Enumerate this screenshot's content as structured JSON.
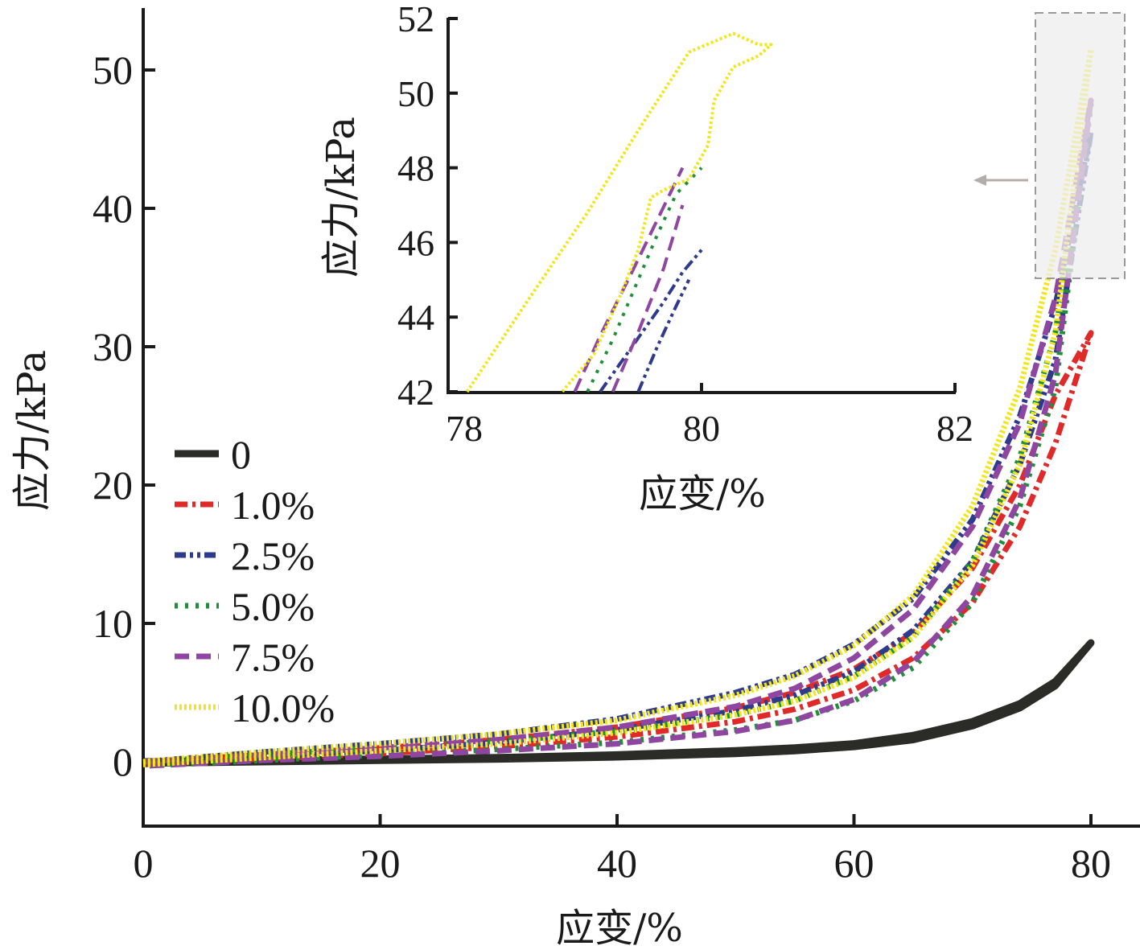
{
  "chart_data": [
    {
      "type": "line",
      "xlabel": "应变/%",
      "ylabel": "应力/kPa",
      "xlim": [
        0,
        84
      ],
      "ylim": [
        -5,
        55
      ],
      "xticks": [
        "0",
        "20",
        "40",
        "60",
        "80"
      ],
      "yticks": [
        "0",
        "10",
        "20",
        "30",
        "40",
        "50"
      ],
      "legend_position": "middle-left",
      "series": [
        {
          "name": "0",
          "color": "#2b2b28",
          "dash": "solid",
          "width": 9,
          "x": [
            0,
            10,
            20,
            30,
            40,
            50,
            55,
            60,
            65,
            70,
            74,
            77,
            80
          ],
          "y": [
            0,
            0.1,
            0.2,
            0.3,
            0.5,
            0.8,
            1.0,
            1.3,
            1.9,
            2.9,
            4.2,
            5.8,
            8.6
          ],
          "unload_y": [
            -0.1,
            0.0,
            0.1,
            0.2,
            0.35,
            0.6,
            0.8,
            1.1,
            1.6,
            2.6,
            3.9,
            5.5,
            8.6
          ]
        },
        {
          "name": "1.0%",
          "color": "#e02a2a",
          "dash": "dashdot",
          "width": 7,
          "x": [
            0,
            10,
            20,
            30,
            40,
            50,
            55,
            60,
            65,
            70,
            74,
            77,
            80
          ],
          "y": [
            0,
            0.5,
            1.0,
            1.6,
            2.5,
            3.9,
            5.0,
            6.7,
            9.3,
            14.0,
            20.0,
            26.5,
            31.0
          ],
          "unload_y": [
            -0.2,
            0.2,
            0.6,
            1.1,
            1.8,
            2.9,
            3.8,
            5.2,
            7.5,
            11.5,
            17.0,
            23.0,
            31.0
          ]
        },
        {
          "name": "2.5%",
          "color": "#2e3a8c",
          "dash": "dashdotdot",
          "width": 7,
          "x": [
            0,
            10,
            20,
            30,
            40,
            50,
            55,
            60,
            65,
            70,
            74,
            77,
            80
          ],
          "y": [
            0,
            0.7,
            1.3,
            2.0,
            3.1,
            5.0,
            6.3,
            8.5,
            11.8,
            17.5,
            25.0,
            33.0,
            45.5
          ],
          "unload_y": [
            -0.2,
            0.3,
            0.8,
            1.4,
            2.3,
            3.7,
            4.8,
            6.5,
            9.5,
            14.5,
            21.5,
            29.0,
            45.5
          ]
        },
        {
          "name": "5.0%",
          "color": "#1f8f3a",
          "dash": "dotted",
          "width": 7,
          "x": [
            0,
            10,
            20,
            30,
            40,
            50,
            55,
            60,
            65,
            70,
            74,
            77,
            80
          ],
          "y": [
            0,
            0.5,
            1.0,
            1.5,
            2.2,
            3.4,
            4.4,
            6.2,
            9.0,
            14.5,
            22.0,
            31.0,
            47.5
          ],
          "unload_y": [
            -0.3,
            0.1,
            0.5,
            0.9,
            1.4,
            2.3,
            3.0,
            4.4,
            6.8,
            11.5,
            18.5,
            27.0,
            47.5
          ]
        },
        {
          "name": "7.5%",
          "color": "#8e46a0",
          "dash": "dashed",
          "width": 7,
          "x": [
            0,
            10,
            20,
            30,
            40,
            50,
            55,
            60,
            65,
            70,
            74,
            77,
            80
          ],
          "y": [
            0,
            0.5,
            1.0,
            1.6,
            2.5,
            4.0,
            5.3,
            7.5,
            11.0,
            17.0,
            24.5,
            33.5,
            47.8
          ],
          "unload_y": [
            -0.3,
            0.1,
            0.4,
            0.8,
            1.3,
            2.2,
            3.0,
            4.5,
            7.2,
            12.0,
            19.0,
            28.0,
            47.8
          ]
        },
        {
          "name": "10.0%",
          "color": "#f2e619",
          "dash": "tinydots",
          "width": 7,
          "x": [
            0,
            10,
            20,
            30,
            40,
            50,
            55,
            60,
            65,
            70,
            74,
            77,
            80
          ],
          "y": [
            0,
            0.7,
            1.3,
            2.0,
            3.0,
            4.8,
            6.2,
            8.4,
            12.0,
            18.5,
            27.0,
            37.0,
            51.5
          ],
          "unload_y": [
            -0.2,
            0.3,
            0.8,
            1.3,
            2.1,
            3.4,
            4.4,
            6.1,
            9.0,
            14.2,
            21.5,
            31.0,
            51.5
          ]
        }
      ]
    },
    {
      "type": "line",
      "xlabel": "应变/%",
      "ylabel": "应力/kPa",
      "xlim": [
        78,
        82
      ],
      "ylim": [
        42,
        52
      ],
      "xticks": [
        "78",
        "80",
        "82"
      ],
      "yticks": [
        "42",
        "44",
        "46",
        "48",
        "50",
        "52"
      ],
      "series": [
        {
          "name": "2.5%",
          "color": "#2e3a8c",
          "dash": "dashdotdot",
          "x": [
            79.2,
            79.45,
            79.7,
            79.85,
            80.0
          ],
          "y": [
            42.0,
            43.2,
            44.4,
            45.2,
            45.8
          ]
        },
        {
          "name": "2.5%",
          "color": "#2e3a8c",
          "dash": "dashdotdot",
          "x": [
            79.5,
            79.65,
            79.8,
            79.9
          ],
          "y": [
            42.0,
            43.2,
            44.3,
            45.0
          ]
        },
        {
          "name": "5.0%",
          "color": "#1f8f3a",
          "dash": "dotted",
          "x": [
            79.1,
            79.3,
            79.5,
            79.65,
            79.8,
            80.0
          ],
          "y": [
            42.0,
            43.4,
            45.0,
            46.2,
            47.3,
            48.0
          ]
        },
        {
          "name": "7.5%",
          "color": "#8e46a0",
          "dash": "dashed",
          "x": [
            79.0,
            79.2,
            79.45,
            79.65,
            79.85
          ],
          "y": [
            42.0,
            43.5,
            45.2,
            46.6,
            48.0
          ]
        },
        {
          "name": "7.5%",
          "color": "#8e46a0",
          "dash": "dashed",
          "x": [
            79.3,
            79.5,
            79.7,
            79.85
          ],
          "y": [
            42.0,
            43.6,
            45.3,
            47.0
          ]
        },
        {
          "name": "10.0%",
          "color": "#f2e619",
          "dash": "tinydots",
          "x": [
            78.15,
            78.6,
            79.1,
            79.5,
            79.9,
            80.25,
            80.45,
            80.55,
            80.45,
            80.25,
            80.1,
            80.05,
            79.9,
            79.7,
            79.6,
            79.5,
            79.35,
            79.15,
            78.9
          ],
          "y": [
            42.0,
            44.3,
            46.8,
            49.0,
            51.1,
            51.6,
            51.3,
            51.3,
            51.0,
            50.7,
            49.8,
            48.6,
            47.7,
            47.4,
            47.2,
            45.8,
            44.5,
            43.0,
            42.0
          ]
        }
      ]
    }
  ]
}
